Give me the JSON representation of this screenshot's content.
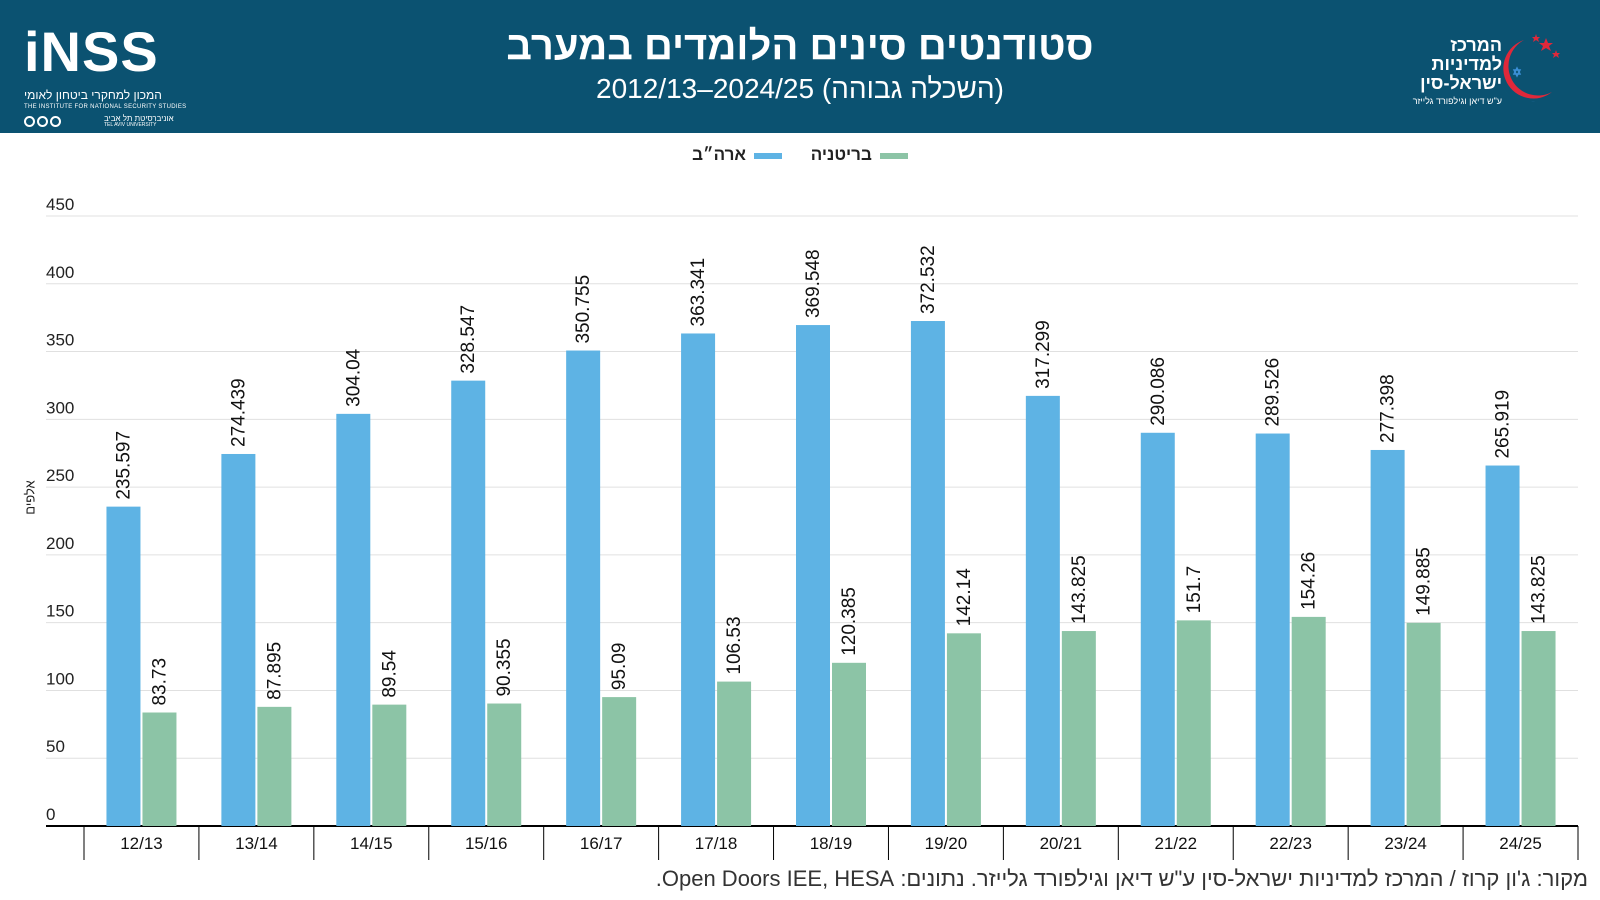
{
  "header": {
    "title": "סטודנטים סינים הלומדים במערב",
    "subtitle": "(השכלה גבוהה) 2024/25–2012/13"
  },
  "logos": {
    "inss": {
      "wordmark": "iNSS",
      "hebrew": "המכון למחקרי ביטחון לאומי",
      "english": "THE INSTITUTE FOR NATIONAL SECURITY STUDIES",
      "university_hebrew": "אוניברסיטת תל אביב",
      "university_english": "TEL AVIV UNIVERSITY"
    },
    "centre": {
      "line1": "המרכז",
      "line2": "למדיניות",
      "line3": "ישראל-סין",
      "line4": "ע\"ש דיאן וגילפורד גלייזר"
    }
  },
  "legend": {
    "usa": "ארה״ב",
    "uk": "בריטניה"
  },
  "colors": {
    "header_bg": "#0b5271",
    "usa": "#5eb3e4",
    "uk": "#8cc4a6",
    "grid": "#e0e0e0",
    "axis": "#000000"
  },
  "chart_data": {
    "type": "bar",
    "title": "סטודנטים סינים הלומדים במערב",
    "subtitle": "(השכלה גבוהה) 2024/25–2012/13",
    "xlabel": "",
    "ylabel": "אלפים",
    "ylim": [
      0,
      450
    ],
    "yticks": [
      0,
      50,
      100,
      150,
      200,
      250,
      300,
      350,
      400,
      450
    ],
    "grid": true,
    "legend_position": "top-center",
    "categories": [
      "12/13",
      "13/14",
      "14/15",
      "15/16",
      "16/17",
      "17/18",
      "18/19",
      "19/20",
      "20/21",
      "21/22",
      "22/23",
      "23/24",
      "24/25"
    ],
    "series": [
      {
        "name": "ארה״ב",
        "values": [
          235.597,
          274.439,
          304.04,
          328.547,
          350.755,
          363.341,
          369.548,
          372.532,
          317.299,
          290.086,
          289.526,
          277.398,
          265.919
        ],
        "labels": [
          "235.597",
          "274.439",
          "304.04",
          "328.547",
          "350.755",
          "363.341",
          "369.548",
          "372.532",
          "317.299",
          "290.086",
          "289.526",
          "277.398",
          "265.919"
        ]
      },
      {
        "name": "בריטניה",
        "values": [
          83.73,
          87.895,
          89.54,
          90.355,
          95.09,
          106.53,
          120.385,
          142.14,
          143.825,
          151.7,
          154.26,
          149.885,
          143.825
        ],
        "labels": [
          "83.73",
          "87.895",
          "89.54",
          "90.355",
          "95.09",
          "106.53",
          "120.385",
          "142.14",
          "143.825",
          "151.7",
          "154.26",
          "149.885",
          "143.825"
        ]
      }
    ]
  },
  "source": "מקור: ג'ון קרוז / המרכז למדיניות ישראל-סין ע\"ש דיאן וגילפורד גלייזר. נתונים: Open Doors IEE, HESA."
}
